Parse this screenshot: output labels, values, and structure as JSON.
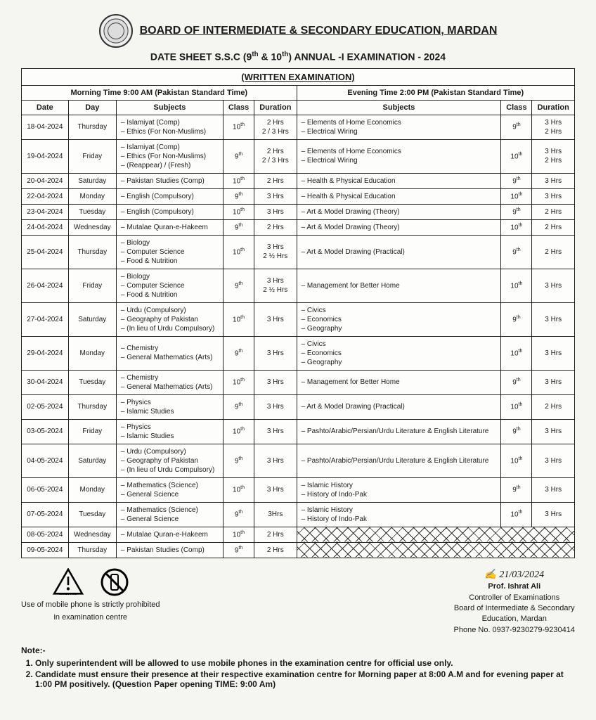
{
  "header": {
    "board": "BOARD OF INTERMEDIATE & SECONDARY EDUCATION, MARDAN",
    "sheet": "DATE SHEET S.S.C (9th & 10th) ANNUAL -I EXAMINATION - 2024",
    "section": "(WRITTEN EXAMINATION)",
    "morning": "Morning Time 9:00 AM   (Pakistan Standard Time)",
    "evening": "Evening Time 2:00 PM  (Pakistan Standard Time)"
  },
  "cols": {
    "date": "Date",
    "day": "Day",
    "subjects": "Subjects",
    "class": "Class",
    "duration": "Duration"
  },
  "rows": [
    {
      "date": "18-04-2024",
      "day": "Thursday",
      "m_subj": [
        "Islamiyat (Comp)",
        "Ethics (For Non-Muslims)"
      ],
      "m_cls": "10th",
      "m_dur": "2 Hrs\n2 / 3 Hrs",
      "e_subj": [
        "Elements of Home Economics",
        "Electrical Wiring"
      ],
      "e_cls": "9th",
      "e_dur": "3 Hrs\n2 Hrs"
    },
    {
      "date": "19-04-2024",
      "day": "Friday",
      "m_subj": [
        "Islamiyat (Comp)",
        "Ethics (For Non-Muslims)",
        "(Reappear) /  (Fresh)"
      ],
      "m_cls": "9th",
      "m_dur": "2 Hrs\n2 / 3 Hrs",
      "e_subj": [
        "Elements of Home Economics",
        "Electrical Wiring"
      ],
      "e_cls": "10th",
      "e_dur": "3 Hrs\n2 Hrs"
    },
    {
      "date": "20-04-2024",
      "day": "Saturday",
      "m_subj": [
        "Pakistan Studies (Comp)"
      ],
      "m_cls": "10th",
      "m_dur": "2 Hrs",
      "e_subj": [
        "Health & Physical Education"
      ],
      "e_cls": "9th",
      "e_dur": "3 Hrs"
    },
    {
      "date": "22-04-2024",
      "day": "Monday",
      "m_subj": [
        "English (Compulsory)"
      ],
      "m_cls": "9th",
      "m_dur": "3 Hrs",
      "e_subj": [
        "Health & Physical Education"
      ],
      "e_cls": "10th",
      "e_dur": "3 Hrs"
    },
    {
      "date": "23-04-2024",
      "day": "Tuesday",
      "m_subj": [
        "English (Compulsory)"
      ],
      "m_cls": "10th",
      "m_dur": "3 Hrs",
      "e_subj": [
        "Art & Model Drawing (Theory)"
      ],
      "e_cls": "9th",
      "e_dur": "2 Hrs"
    },
    {
      "date": "24-04-2024",
      "day": "Wednesday",
      "m_subj": [
        "Mutalae Quran-e-Hakeem"
      ],
      "m_cls": "9th",
      "m_dur": "2 Hrs",
      "e_subj": [
        "Art & Model Drawing (Theory)"
      ],
      "e_cls": "10th",
      "e_dur": "2 Hrs"
    },
    {
      "date": "25-04-2024",
      "day": "Thursday",
      "m_subj": [
        "Biology",
        "Computer Science",
        "Food & Nutrition"
      ],
      "m_cls": "10th",
      "m_dur": "3 Hrs\n2 ½ Hrs",
      "e_subj": [
        "Art & Model Drawing (Practical)"
      ],
      "e_cls": "9th",
      "e_dur": "2 Hrs"
    },
    {
      "date": "26-04-2024",
      "day": "Friday",
      "m_subj": [
        "Biology",
        "Computer Science",
        "Food & Nutrition"
      ],
      "m_cls": "9th",
      "m_dur": "3 Hrs\n2 ½ Hrs",
      "e_subj": [
        "Management for Better Home"
      ],
      "e_cls": "10th",
      "e_dur": "3 Hrs"
    },
    {
      "date": "27-04-2024",
      "day": "Saturday",
      "m_subj": [
        "Urdu  (Compulsory)",
        "Geography of Pakistan",
        "(In lieu of Urdu Compulsory)"
      ],
      "m_cls": "10th",
      "m_dur": "3 Hrs",
      "e_subj": [
        "Civics",
        "Economics",
        "Geography"
      ],
      "e_cls": "9th",
      "e_dur": "3 Hrs"
    },
    {
      "date": "29-04-2024",
      "day": "Monday",
      "m_subj": [
        "Chemistry",
        "General Mathematics (Arts)"
      ],
      "m_cls": "9th",
      "m_dur": "3 Hrs",
      "e_subj": [
        "Civics",
        "Economics",
        "Geography"
      ],
      "e_cls": "10th",
      "e_dur": "3 Hrs"
    },
    {
      "date": "30-04-2024",
      "day": "Tuesday",
      "m_subj": [
        "Chemistry",
        "General Mathematics (Arts)"
      ],
      "m_cls": "10th",
      "m_dur": "3 Hrs",
      "e_subj": [
        "Management for Better Home"
      ],
      "e_cls": "9th",
      "e_dur": "3 Hrs"
    },
    {
      "date": "02-05-2024",
      "day": "Thursday",
      "m_subj": [
        "Physics",
        "Islamic Studies"
      ],
      "m_cls": "9th",
      "m_dur": "3 Hrs",
      "e_subj": [
        "Art & Model Drawing (Practical)"
      ],
      "e_cls": "10th",
      "e_dur": "2 Hrs"
    },
    {
      "date": "03-05-2024",
      "day": "Friday",
      "m_subj": [
        "Physics",
        "Islamic Studies"
      ],
      "m_cls": "10th",
      "m_dur": "3 Hrs",
      "e_subj": [
        "Pashto/Arabic/Persian/Urdu Literature & English Literature"
      ],
      "e_cls": "9th",
      "e_dur": "3 Hrs"
    },
    {
      "date": "04-05-2024",
      "day": "Saturday",
      "m_subj": [
        "Urdu  (Compulsory)",
        "Geography of Pakistan",
        "(In lieu of Urdu Compulsory)"
      ],
      "m_cls": "9th",
      "m_dur": "3 Hrs",
      "e_subj": [
        "Pashto/Arabic/Persian/Urdu Literature & English Literature"
      ],
      "e_cls": "10th",
      "e_dur": "3 Hrs"
    },
    {
      "date": "06-05-2024",
      "day": "Monday",
      "m_subj": [
        "Mathematics (Science)",
        "General Science"
      ],
      "m_cls": "10th",
      "m_dur": "3 Hrs",
      "e_subj": [
        "Islamic History",
        "History of Indo-Pak"
      ],
      "e_cls": "9th",
      "e_dur": "3 Hrs"
    },
    {
      "date": "07-05-2024",
      "day": "Tuesday",
      "m_subj": [
        "Mathematics (Science)",
        "General Science"
      ],
      "m_cls": "9th",
      "m_dur": "3Hrs",
      "e_subj": [
        "Islamic History",
        "History of Indo-Pak"
      ],
      "e_cls": "10th",
      "e_dur": "3 Hrs"
    },
    {
      "date": "08-05-2024",
      "day": "Wednesday",
      "m_subj": [
        "Mutalae Quran-e-Hakeem"
      ],
      "m_cls": "10th",
      "m_dur": "2 Hrs",
      "e_cross": true
    },
    {
      "date": "09-05-2024",
      "day": "Thursday",
      "m_subj": [
        "Pakistan Studies (Comp)"
      ],
      "m_cls": "9th",
      "m_dur": "2 Hrs",
      "e_cross": true
    }
  ],
  "warning": {
    "line1": "Use of mobile phone is strictly prohibited",
    "line2": "in examination centre",
    "label": "WARNING"
  },
  "sign": {
    "script": "21/03/2024",
    "name": "Prof. Ishrat Ali",
    "role": "Controller of Examinations",
    "org1": "Board of Intermediate & Secondary",
    "org2": "Education, Mardan",
    "phone": "Phone No. 0937-9230279-9230414"
  },
  "notes": {
    "title": "Note:-",
    "items": [
      "Only superintendent will be allowed to use mobile phones in the examination centre for official use only.",
      "Candidate must ensure their presence at their respective examination centre for Morning paper at 8:00 A.M and for evening paper at 1:00 PM positively. (Question Paper opening TIME: 9:00 Am)"
    ]
  }
}
